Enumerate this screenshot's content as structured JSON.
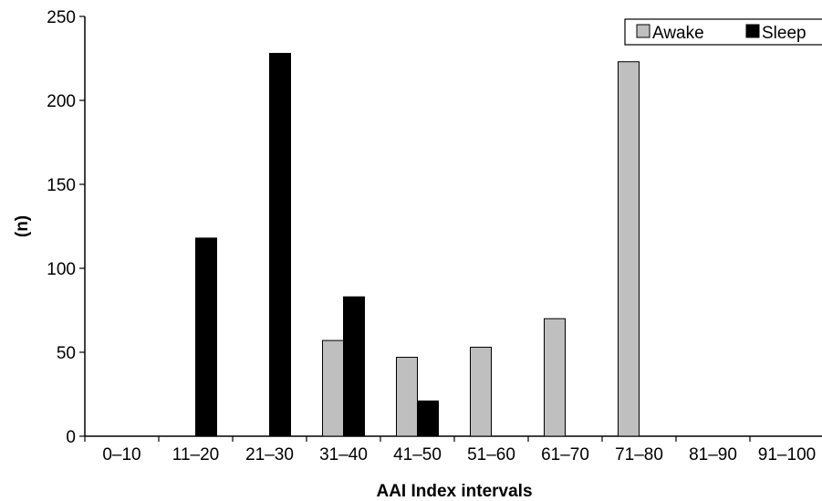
{
  "chart_data": {
    "type": "bar",
    "categories": [
      "0–10",
      "11–20",
      "21–30",
      "31–40",
      "41–50",
      "51–60",
      "61–70",
      "71–80",
      "81–90",
      "91–100"
    ],
    "series": [
      {
        "name": "Awake",
        "color": "#bfbfbf",
        "values": [
          0,
          0,
          0,
          57,
          47,
          53,
          70,
          223,
          0,
          0
        ]
      },
      {
        "name": "Sleep",
        "color": "#000000",
        "values": [
          0,
          118,
          228,
          83,
          21,
          0,
          0,
          0,
          0,
          0
        ]
      }
    ],
    "xlabel": "AAI Index intervals",
    "ylabel": "(n)",
    "ylim": [
      0,
      250
    ],
    "yticks": [
      "0",
      "50",
      "100",
      "150",
      "200",
      "250"
    ],
    "grid": false,
    "legend_position": "top-right"
  }
}
